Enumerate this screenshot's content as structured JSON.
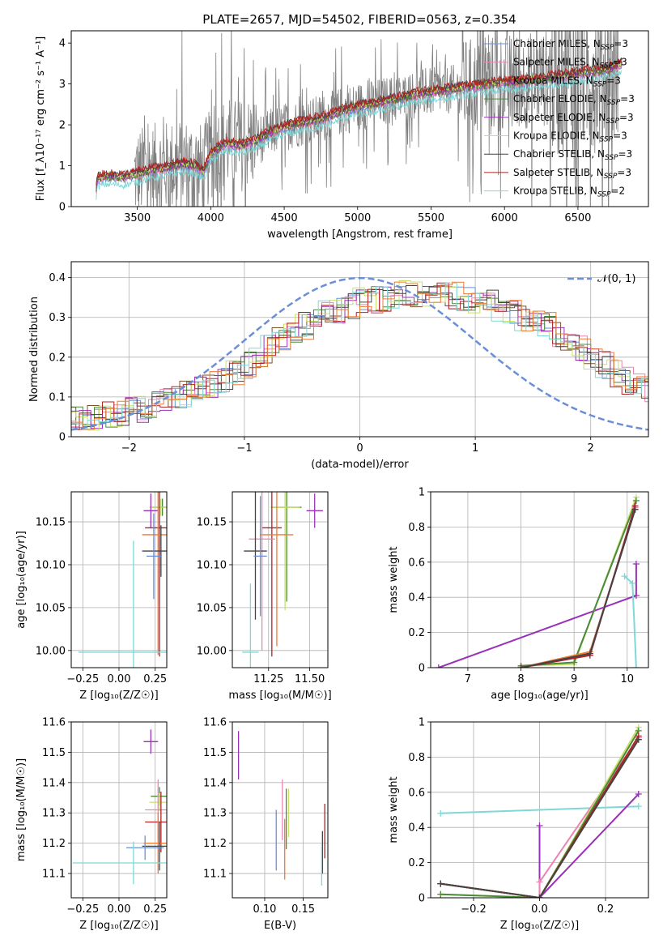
{
  "figure": {
    "title": "PLATE=2657, MJD=54502, FIBERID=0563, z=0.354"
  },
  "colors": {
    "chabrier_miles": "#6a8fd8",
    "salpeter_miles": "#ee82b4",
    "kroupa_miles": "#7a5230",
    "chabrier_elodie": "#4a8a3a",
    "salpeter_elodie": "#9b30b8",
    "kroupa_elodie": "#c8e06a",
    "chabrier_stelib": "#444444",
    "salpeter_stelib": "#b22222",
    "kroupa_stelib": "#7fd8d8",
    "data": "#808080",
    "orange": "#f07a30",
    "normal": "#6a8fd8"
  },
  "chart_data": [
    {
      "id": "spectrum",
      "type": "line",
      "xlabel": "wavelength [Angstrom, rest frame]",
      "ylabel": "Flux [f_λ10⁻¹⁷ erg cm⁻² s⁻¹ A⁻¹]",
      "xlim": [
        3050,
        6980
      ],
      "ylim": [
        0,
        4.3
      ],
      "xticks": [
        3500,
        4000,
        4500,
        5000,
        5500,
        6000,
        6500
      ],
      "yticks": [
        0,
        1,
        2,
        3,
        4
      ],
      "grid": false,
      "legend_position": "top-right",
      "legend": [
        {
          "text": "Chabrier MILES, N",
          "sub": "SSP",
          "suffix": "=3",
          "color": "chabrier_miles"
        },
        {
          "text": "Salpeter MILES, N",
          "sub": "SSP",
          "suffix": "=3",
          "color": "salpeter_miles"
        },
        {
          "text": "Kroupa MILES, N",
          "sub": "SSP",
          "suffix": "=3",
          "color": "kroupa_miles"
        },
        {
          "text": "Chabrier ELODIE, N",
          "sub": "SSP",
          "suffix": "=3",
          "color": "chabrier_elodie"
        },
        {
          "text": "Salpeter ELODIE, N",
          "sub": "SSP",
          "suffix": "=3",
          "color": "salpeter_elodie"
        },
        {
          "text": "Kroupa ELODIE, N",
          "sub": "SSP",
          "suffix": "=3",
          "color": "kroupa_elodie"
        },
        {
          "text": "Chabrier STELIB, N",
          "sub": "SSP",
          "suffix": "=3",
          "color": "chabrier_stelib"
        },
        {
          "text": "Salpeter STELIB, N",
          "sub": "SSP",
          "suffix": "=3",
          "color": "salpeter_stelib"
        },
        {
          "text": "Kroupa STELIB, N",
          "sub": "SSP",
          "suffix": "=2",
          "color": "kroupa_stelib"
        }
      ],
      "model_continuum": {
        "wavelength": [
          3220,
          3230,
          3300,
          3400,
          3500,
          3600,
          3700,
          3800,
          3900,
          3950,
          4000,
          4100,
          4200,
          4300,
          4400,
          4500,
          4600,
          4700,
          4800,
          4900,
          5000,
          5100,
          5200,
          5300,
          5400,
          5500,
          5600,
          5700,
          5800,
          5900,
          6000,
          6100,
          6200,
          6300,
          6400,
          6500,
          6600,
          6700,
          6800
        ],
        "flux": [
          0.45,
          0.7,
          0.75,
          0.72,
          0.8,
          0.9,
          0.95,
          1.05,
          1.0,
          0.85,
          1.3,
          1.55,
          1.5,
          1.6,
          1.8,
          1.95,
          2.05,
          2.1,
          2.2,
          2.35,
          2.45,
          2.5,
          2.6,
          2.65,
          2.75,
          2.8,
          2.85,
          2.9,
          2.95,
          3.0,
          3.05,
          3.05,
          3.1,
          3.15,
          3.2,
          3.25,
          3.3,
          3.35,
          3.5
        ]
      },
      "observed_range": [
        3480,
        6780
      ]
    },
    {
      "id": "residuals",
      "type": "histogram",
      "xlabel": "(data-model)/error",
      "ylabel": "Normed distribution",
      "xlim": [
        -2.5,
        2.5
      ],
      "ylim": [
        0,
        0.44
      ],
      "xticks": [
        -2,
        -1,
        0,
        1,
        2
      ],
      "yticks": [
        0.0,
        0.1,
        0.2,
        0.3,
        0.4
      ],
      "grid": true,
      "legend_position": "top-right",
      "normal_label": "𝒩(0, 1)",
      "bin_width": 0.1,
      "envelope": [
        0.04,
        0.045,
        0.05,
        0.055,
        0.06,
        0.065,
        0.07,
        0.08,
        0.09,
        0.1,
        0.11,
        0.12,
        0.13,
        0.145,
        0.16,
        0.18,
        0.2,
        0.22,
        0.24,
        0.26,
        0.28,
        0.3,
        0.31,
        0.32,
        0.33,
        0.34,
        0.345,
        0.35,
        0.355,
        0.36,
        0.36,
        0.36,
        0.36,
        0.355,
        0.35,
        0.345,
        0.335,
        0.325,
        0.31,
        0.3,
        0.29,
        0.28,
        0.26,
        0.24,
        0.22,
        0.2,
        0.18,
        0.16,
        0.14,
        0.13,
        0.12,
        0.11,
        0.1,
        0.09,
        0.08,
        0.07,
        0.065,
        0.06,
        0.055,
        0.05
      ]
    },
    {
      "id": "age-vs-z",
      "type": "errorbar",
      "xlabel": "Z [log₁₀(Z/Z☉)]",
      "ylabel": "age  [log₁₀(age/yr)]",
      "xlim": [
        -0.33,
        0.33
      ],
      "ylim": [
        9.98,
        10.185
      ],
      "xticks": [
        -0.25,
        0.0,
        0.25
      ],
      "xticklabels": [
        "−0.25",
        "0.00",
        "0.25"
      ],
      "yticks": [
        10.0,
        10.05,
        10.1,
        10.15
      ],
      "yticklabels": [
        "10.00",
        "10.05",
        "10.10",
        "10.15"
      ],
      "points": [
        {
          "x": 0.3,
          "y": 10.167,
          "xerr": 0.08,
          "yerr": 0.01,
          "color": "chabrier_elodie"
        },
        {
          "x": 0.29,
          "y": 10.167,
          "xerr": 0.08,
          "yerr": 0.01,
          "color": "kroupa_elodie"
        },
        {
          "x": 0.22,
          "y": 10.163,
          "xerr": 0.05,
          "yerr": 0.02,
          "color": "salpeter_elodie"
        },
        {
          "x": 0.28,
          "y": 10.143,
          "xerr": 0.1,
          "yerr": 0.15,
          "color": "salpeter_stelib"
        },
        {
          "x": 0.27,
          "y": 10.135,
          "xerr": 0.11,
          "yerr": 0.14,
          "color": "orange"
        },
        {
          "x": 0.29,
          "y": 10.116,
          "xerr": 0.13,
          "yerr": 0.03,
          "color": "chabrier_stelib"
        },
        {
          "x": 0.24,
          "y": 10.11,
          "xerr": 0.05,
          "yerr": 0.05,
          "color": "chabrier_miles"
        },
        {
          "x": 0.1,
          "y": 9.998,
          "xerr": 0.38,
          "yerr": 0.13,
          "color": "kroupa_stelib"
        }
      ]
    },
    {
      "id": "age-vs-mass",
      "type": "errorbar",
      "xlabel": "mass [log₁₀(M/M☉)]",
      "ylabel": "",
      "xlim": [
        11.03,
        11.61
      ],
      "ylim": [
        9.98,
        10.185
      ],
      "xticks": [
        11.25,
        11.5
      ],
      "xticklabels": [
        "11.25",
        "11.50"
      ],
      "yticks": [
        10.0,
        10.05,
        10.1,
        10.15
      ],
      "yticklabels": [
        "10.00",
        "10.05",
        "10.10",
        "10.15"
      ],
      "points": [
        {
          "x": 11.53,
          "y": 10.163,
          "xerr": 0.05,
          "yerr": 0.02,
          "color": "salpeter_elodie"
        },
        {
          "x": 11.36,
          "y": 10.167,
          "xerr": 0.09,
          "yerr": 0.11,
          "color": "chabrier_elodie"
        },
        {
          "x": 11.35,
          "y": 10.167,
          "xerr": 0.09,
          "yerr": 0.12,
          "color": "kroupa_elodie"
        },
        {
          "x": 11.27,
          "y": 10.143,
          "xerr": 0.06,
          "yerr": 0.15,
          "color": "salpeter_stelib"
        },
        {
          "x": 11.3,
          "y": 10.135,
          "xerr": 0.1,
          "yerr": 0.13,
          "color": "orange"
        },
        {
          "x": 11.21,
          "y": 10.13,
          "xerr": 0.08,
          "yerr": 0.13,
          "color": "salpeter_miles"
        },
        {
          "x": 11.17,
          "y": 10.116,
          "xerr": 0.07,
          "yerr": 0.08,
          "color": "chabrier_stelib"
        },
        {
          "x": 11.2,
          "y": 10.11,
          "xerr": 0.04,
          "yerr": 0.07,
          "color": "chabrier_miles"
        },
        {
          "x": 11.14,
          "y": 9.998,
          "xerr": 0.05,
          "yerr": 0.08,
          "color": "kroupa_stelib"
        }
      ]
    },
    {
      "id": "weight-vs-age",
      "type": "line",
      "xlabel": "age  [log₁₀(age/yr)]",
      "ylabel": "mass weight",
      "xlim": [
        6.3,
        10.4
      ],
      "ylim": [
        0,
        1.0
      ],
      "xticks": [
        7,
        8,
        9,
        10
      ],
      "yticks": [
        0.0,
        0.2,
        0.4,
        0.6,
        0.8,
        1.0
      ],
      "grid": true,
      "series": [
        {
          "color": "salpeter_elodie",
          "x": [
            6.45,
            10.17,
            10.17
          ],
          "y": [
            0.0,
            0.41,
            0.59
          ]
        },
        {
          "color": "kroupa_stelib",
          "x": [
            9.95,
            10.1,
            10.17
          ],
          "y": [
            0.52,
            0.48,
            0.0
          ]
        },
        {
          "color": "kroupa_elodie",
          "x": [
            8.0,
            9.0,
            10.17
          ],
          "y": [
            0.01,
            0.02,
            0.97
          ]
        },
        {
          "color": "chabrier_elodie",
          "x": [
            8.0,
            9.0,
            10.17
          ],
          "y": [
            0.01,
            0.03,
            0.95
          ]
        },
        {
          "color": "orange",
          "x": [
            8.0,
            9.3,
            10.15
          ],
          "y": [
            0.0,
            0.09,
            0.9
          ]
        },
        {
          "color": "salpeter_miles",
          "x": [
            8.0,
            9.3,
            10.15
          ],
          "y": [
            0.0,
            0.08,
            0.91
          ]
        },
        {
          "color": "salpeter_stelib",
          "x": [
            8.0,
            9.3,
            10.15
          ],
          "y": [
            0.0,
            0.07,
            0.92
          ]
        },
        {
          "color": "chabrier_stelib",
          "x": [
            8.0,
            9.3,
            10.15
          ],
          "y": [
            0.0,
            0.08,
            0.9
          ]
        }
      ]
    },
    {
      "id": "mass-vs-z",
      "type": "errorbar",
      "xlabel": "Z [log₁₀(Z/Z☉)]",
      "ylabel": "mass [log₁₀(M/M☉)]",
      "xlim": [
        -0.33,
        0.33
      ],
      "ylim": [
        11.02,
        11.6
      ],
      "xticks": [
        -0.25,
        0.0,
        0.25
      ],
      "xticklabels": [
        "−0.25",
        "0.00",
        "0.25"
      ],
      "yticks": [
        11.1,
        11.2,
        11.3,
        11.4,
        11.5,
        11.6
      ],
      "yticklabels": [
        "11.1",
        "11.2",
        "11.3",
        "11.4",
        "11.5",
        "11.6"
      ],
      "points": [
        {
          "x": 0.22,
          "y": 11.535,
          "xerr": 0.05,
          "yerr": 0.04,
          "color": "salpeter_elodie"
        },
        {
          "x": 0.28,
          "y": 11.355,
          "xerr": 0.06,
          "yerr": 0.03,
          "color": "chabrier_elodie"
        },
        {
          "x": 0.28,
          "y": 11.335,
          "xerr": 0.07,
          "yerr": 0.03,
          "color": "kroupa_elodie"
        },
        {
          "x": 0.27,
          "y": 11.31,
          "xerr": 0.09,
          "yerr": 0.1,
          "color": "salpeter_miles"
        },
        {
          "x": 0.29,
          "y": 11.27,
          "xerr": 0.11,
          "yerr": 0.1,
          "color": "salpeter_stelib"
        },
        {
          "x": 0.27,
          "y": 11.2,
          "xerr": 0.1,
          "yerr": 0.1,
          "color": "orange"
        },
        {
          "x": 0.28,
          "y": 11.19,
          "xerr": 0.12,
          "yerr": 0.08,
          "color": "chabrier_stelib"
        },
        {
          "x": 0.18,
          "y": 11.185,
          "xerr": 0.13,
          "yerr": 0.04,
          "color": "chabrier_miles"
        },
        {
          "x": 0.1,
          "y": 11.135,
          "xerr": 0.42,
          "yerr": 0.07,
          "color": "kroupa_stelib"
        }
      ]
    },
    {
      "id": "mass-vs-ebv",
      "type": "errorbar",
      "xlabel": "E(B-V)",
      "ylabel": "",
      "xlim": [
        0.058,
        0.182
      ],
      "ylim": [
        11.02,
        11.6
      ],
      "xticks": [
        0.1,
        0.15
      ],
      "xticklabels": [
        "0.10",
        "0.15"
      ],
      "yticks": [
        11.1,
        11.2,
        11.3,
        11.4,
        11.5,
        11.6
      ],
      "yticklabels": [
        "11.1",
        "11.2",
        "11.3",
        "11.4",
        "11.5",
        "11.6"
      ],
      "points": [
        {
          "x": 0.066,
          "y": 11.49,
          "xerr": 0,
          "yerr": 0.08,
          "color": "salpeter_elodie"
        },
        {
          "x": 0.115,
          "y": 11.21,
          "xerr": 0,
          "yerr": 0.1,
          "color": "chabrier_miles"
        },
        {
          "x": 0.123,
          "y": 11.31,
          "xerr": 0,
          "yerr": 0.1,
          "color": "salpeter_miles"
        },
        {
          "x": 0.126,
          "y": 11.18,
          "xerr": 0,
          "yerr": 0.1,
          "color": "orange"
        },
        {
          "x": 0.128,
          "y": 11.28,
          "xerr": 0,
          "yerr": 0.1,
          "color": "chabrier_elodie"
        },
        {
          "x": 0.131,
          "y": 11.3,
          "xerr": 0,
          "yerr": 0.08,
          "color": "kroupa_elodie"
        },
        {
          "x": 0.175,
          "y": 11.17,
          "xerr": 0,
          "yerr": 0.07,
          "color": "chabrier_stelib"
        },
        {
          "x": 0.174,
          "y": 11.13,
          "xerr": 0,
          "yerr": 0.07,
          "color": "kroupa_stelib"
        },
        {
          "x": 0.178,
          "y": 11.24,
          "xerr": 0,
          "yerr": 0.09,
          "color": "salpeter_stelib"
        }
      ]
    },
    {
      "id": "weight-vs-z",
      "type": "line",
      "xlabel": "Z [log₁₀(Z/Z☉)]",
      "ylabel": "mass weight",
      "xlim": [
        -0.33,
        0.33
      ],
      "ylim": [
        0,
        1.0
      ],
      "xticks": [
        -0.2,
        0.0,
        0.2
      ],
      "xticklabels": [
        "−0.2",
        "0.0",
        "0.2"
      ],
      "yticks": [
        0.0,
        0.2,
        0.4,
        0.6,
        0.8,
        1.0
      ],
      "grid": true,
      "series": [
        {
          "color": "kroupa_stelib",
          "x": [
            -0.3,
            0.3
          ],
          "y": [
            0.48,
            0.52
          ]
        },
        {
          "color": "salpeter_elodie",
          "x": [
            0.0,
            0.0,
            0.3
          ],
          "y": [
            0.41,
            0.0,
            0.59
          ]
        },
        {
          "color": "salpeter_miles",
          "x": [
            -0.3,
            0.0,
            0.0,
            0.3
          ],
          "y": [
            0.08,
            0.0,
            0.09,
            0.91
          ]
        },
        {
          "color": "kroupa_elodie",
          "x": [
            -0.3,
            0.0,
            0.3
          ],
          "y": [
            0.02,
            0.0,
            0.97
          ]
        },
        {
          "color": "chabrier_elodie",
          "x": [
            -0.3,
            0.0,
            0.3
          ],
          "y": [
            0.02,
            0.0,
            0.95
          ]
        },
        {
          "color": "orange",
          "x": [
            -0.3,
            0.0,
            0.3
          ],
          "y": [
            0.08,
            0.0,
            0.9
          ]
        },
        {
          "color": "salpeter_stelib",
          "x": [
            -0.3,
            0.0,
            0.3
          ],
          "y": [
            0.08,
            0.0,
            0.92
          ]
        },
        {
          "color": "chabrier_stelib",
          "x": [
            -0.3,
            0.0,
            0.3
          ],
          "y": [
            0.08,
            0.0,
            0.9
          ]
        }
      ]
    }
  ]
}
